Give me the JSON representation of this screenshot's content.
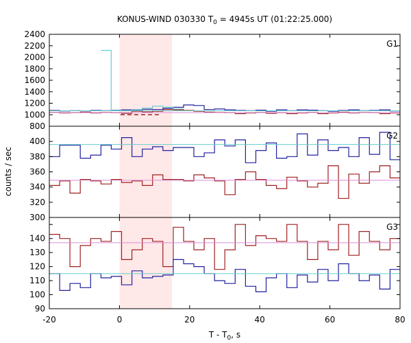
{
  "chart_data": {
    "type": "line",
    "title": {
      "main": "KONUS-WIND 030330 T",
      "sub": "0",
      "rest": " = 4945s UT (01:22:25.000)"
    },
    "xlabel": {
      "main": "T - T",
      "sub": "0",
      "rest": ", s"
    },
    "ylabel": "counts / sec",
    "xlim": [
      -20,
      80
    ],
    "xticks": [
      -20,
      0,
      20,
      40,
      60,
      80
    ],
    "highlight": {
      "x0": 0,
      "x1": 15,
      "color": "#ffe8e8"
    },
    "step": 2.944,
    "panels": [
      {
        "name": "G1",
        "ylim": [
          800,
          2400
        ],
        "yticks": [
          800,
          1000,
          1200,
          1400,
          1600,
          1800,
          2000,
          2200,
          2400
        ],
        "series": [
          {
            "color": "#1f1f9e",
            "style": "step",
            "x0": -20.0,
            "values": [
              1075,
              1065,
              1070,
              1068,
              1075,
              1070,
              1080,
              1085,
              1075,
              1095,
              1090,
              1110,
              1130,
              1170,
              1160,
              1090,
              1100,
              1085,
              1075,
              1070,
              1080,
              1060,
              1085,
              1070,
              1085,
              1080,
              1070,
              1060,
              1075,
              1085,
              1070,
              1075,
              1085,
              1065,
              1090,
              1080,
              1075
            ]
          },
          {
            "color": "#9e1f1f",
            "style": "step",
            "x0": -20.0,
            "values": [
              1040,
              1030,
              1035,
              1045,
              1030,
              1040,
              1035,
              1025,
              1060,
              1050,
              1060,
              1090,
              1085,
              1075,
              1060,
              1045,
              1040,
              1035,
              1020,
              1030,
              1040,
              1025,
              1035,
              1020,
              1030,
              1040,
              1020,
              1030,
              1045,
              1030,
              1040,
              1035,
              1020,
              1030,
              1045,
              1030,
              1035
            ]
          },
          {
            "color": "#66cccc",
            "style": "step",
            "x0": -5.3,
            "values": [
              2120,
              1075,
              1070,
              1090,
              1115,
              1150,
              1130,
              1100
            ],
            "dash": [
              [
                0.3,
                15.0,
                1150
              ]
            ]
          },
          {
            "color": "#66cccc",
            "style": "flat",
            "y": 1068
          },
          {
            "color": "#d98cd9",
            "style": "flat",
            "y": 1038
          }
        ],
        "dashed": [
          {
            "color": "#9e1f1f",
            "x0": 0.3,
            "x1": 12.0,
            "y": 1000
          }
        ]
      },
      {
        "name": "G2",
        "ylim": [
          300,
          420
        ],
        "yticks": [
          300,
          320,
          340,
          360,
          380,
          400,
          420
        ],
        "series": [
          {
            "color": "#1f1f9e",
            "style": "step",
            "x0": -20.0,
            "values": [
              380,
              395,
              395,
              378,
              382,
              395,
              390,
              405,
              380,
              390,
              393,
              388,
              392,
              392,
              380,
              385,
              402,
              394,
              402,
              372,
              388,
              398,
              378,
              380,
              410,
              382,
              402,
              388,
              392,
              380,
              405,
              383,
              412,
              376,
              395,
              378,
              397,
              395,
              388,
              380,
              410,
              398,
              388,
              394,
              382,
              393,
              408,
              378,
              394,
              408,
              402,
              392,
              380,
              410,
              378,
              412,
              393,
              408,
              388,
              394,
              415,
              402,
              418,
              394,
              388,
              412,
              395
            ]
          },
          {
            "color": "#9e1f1f",
            "style": "step",
            "x0": -20.0,
            "values": [
              342,
              348,
              332,
              350,
              348,
              344,
              350,
              346,
              348,
              342,
              356,
              350,
              350,
              348,
              356,
              352,
              348,
              330,
              350,
              360,
              350,
              342,
              338,
              353,
              348,
              340,
              345,
              368,
              325,
              357,
              345,
              360,
              368,
              352,
              372,
              352,
              360,
              345,
              338,
              350,
              342,
              332,
              345,
              352,
              350,
              355
            ]
          },
          {
            "color": "#66cccc",
            "style": "flat",
            "y": 396
          },
          {
            "color": "#d98cd9",
            "style": "flat",
            "y": 349
          }
        ]
      },
      {
        "name": "G3",
        "ylim": [
          90,
          155
        ],
        "yticks": [
          90,
          100,
          110,
          120,
          130,
          140,
          150
        ],
        "series": [
          {
            "color": "#9e1f1f",
            "style": "step",
            "x0": -20.0,
            "values": [
              143,
              140,
              120,
              135,
              140,
              138,
              145,
              125,
              132,
              140,
              138,
              120,
              148,
              138,
              132,
              140,
              118,
              132,
              150,
              135,
              142,
              140,
              138,
              150,
              138,
              125,
              138,
              132,
              150,
              128,
              145,
              138,
              132,
              140,
              120,
              138,
              142,
              130,
              145,
              138,
              132,
              120,
              145,
              140,
              125
            ]
          },
          {
            "color": "#1f1f9e",
            "style": "step",
            "x0": -20.0,
            "values": [
              115,
              103,
              108,
              105,
              115,
              112,
              113,
              107,
              117,
              112,
              113,
              114,
              125,
              122,
              120,
              115,
              110,
              108,
              118,
              106,
              102,
              112,
              115,
              105,
              114,
              109,
              118,
              110,
              122,
              115,
              110,
              114,
              104,
              118,
              112,
              109,
              118,
              106,
              112,
              118,
              110,
              102,
              112,
              120,
              104
            ]
          },
          {
            "color": "#66cccc",
            "style": "flat",
            "y": 115
          },
          {
            "color": "#d98cd9",
            "style": "flat",
            "y": 137
          }
        ]
      }
    ]
  }
}
